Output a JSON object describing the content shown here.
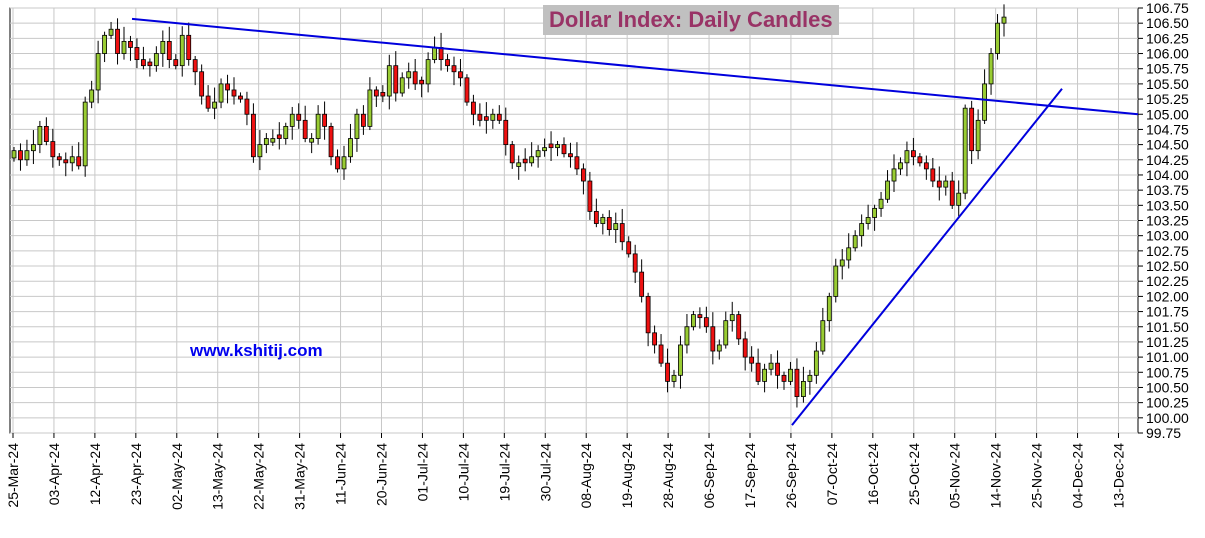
{
  "chart_data": {
    "type": "candlestick",
    "title": "Dollar Index: Daily Candles",
    "annotation": "www.kshitij.com",
    "colors": {
      "up": "#99cc33",
      "down": "#ee1111",
      "wick": "#000000",
      "trendline": "#0000dd",
      "grid": "#c8c8c8",
      "title_bg": "#c0c0c0",
      "title_text": "#993366"
    },
    "grid": true,
    "ylim": [
      99.75,
      106.75
    ],
    "y_ticks": [
      "106.75",
      "106.50",
      "106.25",
      "106.00",
      "105.75",
      "105.50",
      "105.25",
      "105.00",
      "104.75",
      "104.50",
      "104.25",
      "104.00",
      "103.75",
      "103.50",
      "103.25",
      "103.00",
      "102.75",
      "102.50",
      "102.25",
      "102.00",
      "101.75",
      "101.50",
      "101.25",
      "101.00",
      "100.75",
      "100.50",
      "100.25",
      "100.00",
      "99.75"
    ],
    "x_ticks": [
      "25-Mar-24",
      "03-Apr-24",
      "12-Apr-24",
      "23-Apr-24",
      "02-May-24",
      "13-May-24",
      "22-May-24",
      "31-May-24",
      "11-Jun-24",
      "20-Jun-24",
      "01-Jul-24",
      "10-Jul-24",
      "19-Jul-24",
      "30-Jul-24",
      "08-Aug-24",
      "19-Aug-24",
      "28-Aug-24",
      "06-Sep-24",
      "17-Sep-24",
      "26-Sep-24",
      "07-Oct-24",
      "16-Oct-24",
      "25-Oct-24",
      "05-Nov-24",
      "14-Nov-24",
      "25-Nov-24",
      "04-Dec-24",
      "13-Dec-24"
    ],
    "closes": [
      104.4,
      104.25,
      104.4,
      104.5,
      104.8,
      104.55,
      104.3,
      104.25,
      104.2,
      104.3,
      104.15,
      105.2,
      105.4,
      106.0,
      106.3,
      106.4,
      106.0,
      106.2,
      106.1,
      105.9,
      105.8,
      105.8,
      106.0,
      106.2,
      105.9,
      105.8,
      106.3,
      105.9,
      105.7,
      105.3,
      105.1,
      105.2,
      105.5,
      105.4,
      105.3,
      105.25,
      105.0,
      104.3,
      104.5,
      104.6,
      104.6,
      104.6,
      104.8,
      105.0,
      104.9,
      104.6,
      104.6,
      105.0,
      104.8,
      104.3,
      104.1,
      104.3,
      104.6,
      105.0,
      104.8,
      105.4,
      105.3,
      105.3,
      105.8,
      105.35,
      105.6,
      105.7,
      105.5,
      105.5,
      105.9,
      106.1,
      105.9,
      105.8,
      105.7,
      105.6,
      105.2,
      105.0,
      104.9,
      104.9,
      105.0,
      104.9,
      104.5,
      104.2,
      104.2,
      104.2,
      104.3,
      104.4,
      104.45,
      104.45,
      104.5,
      104.35,
      104.3,
      104.1,
      103.9,
      103.4,
      103.2,
      103.3,
      103.1,
      103.2,
      102.9,
      102.7,
      102.4,
      102.0,
      101.4,
      101.2,
      100.9,
      100.6,
      100.7,
      101.2,
      101.5,
      101.7,
      101.65,
      101.5,
      101.1,
      101.2,
      101.6,
      101.7,
      101.3,
      101.0,
      100.9,
      100.6,
      100.8,
      100.9,
      100.7,
      100.6,
      100.8,
      100.35,
      100.6,
      100.7,
      101.1,
      101.6,
      102.0,
      102.5,
      102.6,
      102.8,
      103.0,
      103.2,
      103.3,
      103.45,
      103.6,
      103.9,
      104.1,
      104.2,
      104.4,
      104.3,
      104.2,
      104.1,
      103.9,
      103.8,
      103.9,
      103.5,
      103.7,
      105.1,
      104.4,
      104.9,
      105.5,
      106.0,
      106.5,
      106.6
    ]
  }
}
